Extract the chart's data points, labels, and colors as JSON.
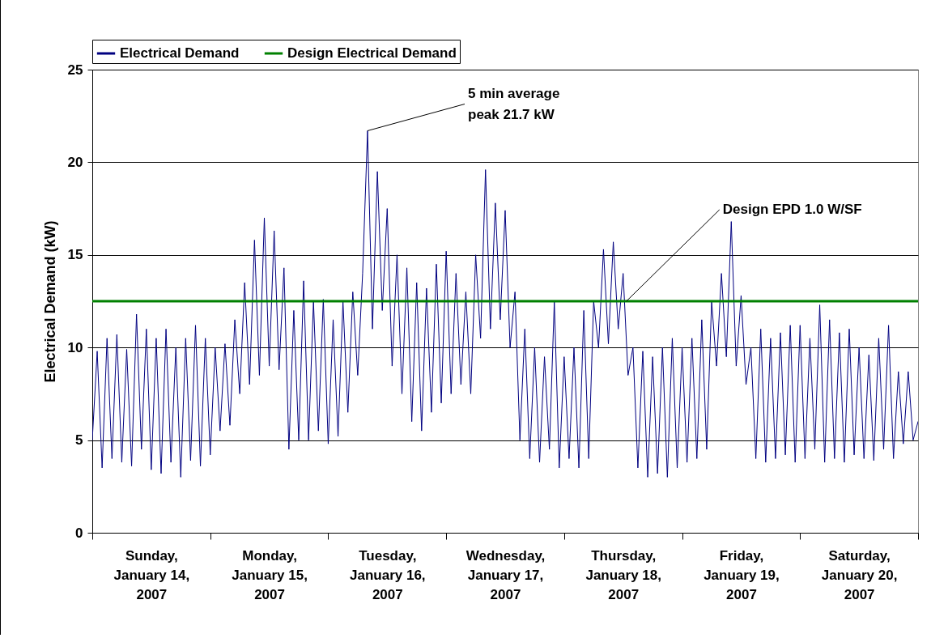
{
  "chart_data": {
    "type": "line",
    "ylabel": "Electrical Demand (kW)",
    "x": [
      "2007-01-14T00:00",
      "2007-01-14T01:00",
      "2007-01-14T02:00",
      "2007-01-14T03:00",
      "2007-01-14T04:00",
      "2007-01-14T05:00",
      "2007-01-14T06:00",
      "2007-01-14T07:00",
      "2007-01-14T08:00",
      "2007-01-14T09:00",
      "2007-01-14T10:00",
      "2007-01-14T11:00",
      "2007-01-14T12:00",
      "2007-01-14T13:00",
      "2007-01-14T14:00",
      "2007-01-14T15:00",
      "2007-01-14T16:00",
      "2007-01-14T17:00",
      "2007-01-14T18:00",
      "2007-01-14T19:00",
      "2007-01-14T20:00",
      "2007-01-14T21:00",
      "2007-01-14T22:00",
      "2007-01-14T23:00",
      "2007-01-15T00:00",
      "2007-01-15T01:00",
      "2007-01-15T02:00",
      "2007-01-15T03:00",
      "2007-01-15T04:00",
      "2007-01-15T05:00",
      "2007-01-15T06:00",
      "2007-01-15T07:00",
      "2007-01-15T08:00",
      "2007-01-15T09:00",
      "2007-01-15T10:00",
      "2007-01-15T11:00",
      "2007-01-15T12:00",
      "2007-01-15T13:00",
      "2007-01-15T14:00",
      "2007-01-15T15:00",
      "2007-01-15T16:00",
      "2007-01-15T17:00",
      "2007-01-15T18:00",
      "2007-01-15T19:00",
      "2007-01-15T20:00",
      "2007-01-15T21:00",
      "2007-01-15T22:00",
      "2007-01-15T23:00",
      "2007-01-16T00:00",
      "2007-01-16T01:00",
      "2007-01-16T02:00",
      "2007-01-16T03:00",
      "2007-01-16T04:00",
      "2007-01-16T05:00",
      "2007-01-16T06:00",
      "2007-01-16T07:00",
      "2007-01-16T08:00",
      "2007-01-16T09:00",
      "2007-01-16T10:00",
      "2007-01-16T11:00",
      "2007-01-16T12:00",
      "2007-01-16T13:00",
      "2007-01-16T14:00",
      "2007-01-16T15:00",
      "2007-01-16T16:00",
      "2007-01-16T17:00",
      "2007-01-16T18:00",
      "2007-01-16T19:00",
      "2007-01-16T20:00",
      "2007-01-16T21:00",
      "2007-01-16T22:00",
      "2007-01-16T23:00",
      "2007-01-17T00:00",
      "2007-01-17T01:00",
      "2007-01-17T02:00",
      "2007-01-17T03:00",
      "2007-01-17T04:00",
      "2007-01-17T05:00",
      "2007-01-17T06:00",
      "2007-01-17T07:00",
      "2007-01-17T08:00",
      "2007-01-17T09:00",
      "2007-01-17T10:00",
      "2007-01-17T11:00",
      "2007-01-17T12:00",
      "2007-01-17T13:00",
      "2007-01-17T14:00",
      "2007-01-17T15:00",
      "2007-01-17T16:00",
      "2007-01-17T17:00",
      "2007-01-17T18:00",
      "2007-01-17T19:00",
      "2007-01-17T20:00",
      "2007-01-17T21:00",
      "2007-01-17T22:00",
      "2007-01-17T23:00",
      "2007-01-18T00:00",
      "2007-01-18T01:00",
      "2007-01-18T02:00",
      "2007-01-18T03:00",
      "2007-01-18T04:00",
      "2007-01-18T05:00",
      "2007-01-18T06:00",
      "2007-01-18T07:00",
      "2007-01-18T08:00",
      "2007-01-18T09:00",
      "2007-01-18T10:00",
      "2007-01-18T11:00",
      "2007-01-18T12:00",
      "2007-01-18T13:00",
      "2007-01-18T14:00",
      "2007-01-18T15:00",
      "2007-01-18T16:00",
      "2007-01-18T17:00",
      "2007-01-18T18:00",
      "2007-01-18T19:00",
      "2007-01-18T20:00",
      "2007-01-18T21:00",
      "2007-01-18T22:00",
      "2007-01-18T23:00",
      "2007-01-19T00:00",
      "2007-01-19T01:00",
      "2007-01-19T02:00",
      "2007-01-19T03:00",
      "2007-01-19T04:00",
      "2007-01-19T05:00",
      "2007-01-19T06:00",
      "2007-01-19T07:00",
      "2007-01-19T08:00",
      "2007-01-19T09:00",
      "2007-01-19T10:00",
      "2007-01-19T11:00",
      "2007-01-19T12:00",
      "2007-01-19T13:00",
      "2007-01-19T14:00",
      "2007-01-19T15:00",
      "2007-01-19T16:00",
      "2007-01-19T17:00",
      "2007-01-19T18:00",
      "2007-01-19T19:00",
      "2007-01-19T20:00",
      "2007-01-19T21:00",
      "2007-01-19T22:00",
      "2007-01-19T23:00",
      "2007-01-20T00:00",
      "2007-01-20T01:00",
      "2007-01-20T02:00",
      "2007-01-20T03:00",
      "2007-01-20T04:00",
      "2007-01-20T05:00",
      "2007-01-20T06:00",
      "2007-01-20T07:00",
      "2007-01-20T08:00",
      "2007-01-20T09:00",
      "2007-01-20T10:00",
      "2007-01-20T11:00",
      "2007-01-20T12:00",
      "2007-01-20T13:00",
      "2007-01-20T14:00",
      "2007-01-20T15:00",
      "2007-01-20T16:00",
      "2007-01-20T17:00",
      "2007-01-20T18:00",
      "2007-01-20T19:00",
      "2007-01-20T20:00",
      "2007-01-20T21:00",
      "2007-01-20T22:00",
      "2007-01-20T23:00",
      "2007-01-21T00:00"
    ],
    "series": [
      {
        "name": "Electrical Demand",
        "color": "#000080",
        "values": [
          5.0,
          9.8,
          3.5,
          10.5,
          4.0,
          10.7,
          3.8,
          9.9,
          3.6,
          11.8,
          4.5,
          11.0,
          3.4,
          10.5,
          3.2,
          11.0,
          3.8,
          10.0,
          3.0,
          10.5,
          3.9,
          11.2,
          3.6,
          10.5,
          4.2,
          10.0,
          5.5,
          10.2,
          5.8,
          11.5,
          7.5,
          13.5,
          8.0,
          15.8,
          8.5,
          17.0,
          9.0,
          16.3,
          8.8,
          14.3,
          4.5,
          12.0,
          5.0,
          13.6,
          5.0,
          12.5,
          5.5,
          12.6,
          4.8,
          11.5,
          5.2,
          12.5,
          6.5,
          13.0,
          8.5,
          14.0,
          21.7,
          11.0,
          19.5,
          12.0,
          17.5,
          9.0,
          15.0,
          7.5,
          14.3,
          6.0,
          13.5,
          5.5,
          13.2,
          6.5,
          14.5,
          7.0,
          15.2,
          7.5,
          14.0,
          8.0,
          13.0,
          7.5,
          15.0,
          10.5,
          19.6,
          11.0,
          17.8,
          11.5,
          17.4,
          10.0,
          13.0,
          5.0,
          11.0,
          4.0,
          10.0,
          3.8,
          9.5,
          4.5,
          12.5,
          3.5,
          9.5,
          4.0,
          10.0,
          3.5,
          12.0,
          4.0,
          12.5,
          10.0,
          15.3,
          10.2,
          15.7,
          11.0,
          14.0,
          8.5,
          10.0,
          3.5,
          9.8,
          3.0,
          9.5,
          3.2,
          10.0,
          3.0,
          10.5,
          3.5,
          10.0,
          3.8,
          10.5,
          4.0,
          11.5,
          4.5,
          12.5,
          9.0,
          14.0,
          9.5,
          16.8,
          9.0,
          12.8,
          8.0,
          10.0,
          4.0,
          11.0,
          3.8,
          10.5,
          4.0,
          10.8,
          4.2,
          11.2,
          3.8,
          11.2,
          4.0,
          10.5,
          4.5,
          12.3,
          3.8,
          11.5,
          4.0,
          10.8,
          3.8,
          11.0,
          4.2,
          10.0,
          4.0,
          9.6,
          3.9,
          10.5,
          4.5,
          11.2,
          4.0,
          8.7,
          4.8,
          8.7,
          5.0,
          6.0
        ]
      },
      {
        "name": "Design Electrical Demand",
        "color": "#008000",
        "x": [
          "2007-01-14T00:00",
          "2007-01-21T00:00"
        ],
        "values": [
          12.5,
          12.5
        ]
      }
    ],
    "xlim": [
      "2007-01-14T00:00",
      "2007-01-21T00:00"
    ],
    "xticks": [
      {
        "value": "2007-01-14T00:00",
        "label": null
      },
      {
        "value": "2007-01-15T00:00",
        "label": null
      },
      {
        "value": "2007-01-16T00:00",
        "label": null
      },
      {
        "value": "2007-01-17T00:00",
        "label": null
      },
      {
        "value": "2007-01-18T00:00",
        "label": null
      },
      {
        "value": "2007-01-19T00:00",
        "label": null
      },
      {
        "value": "2007-01-20T00:00",
        "label": null
      },
      {
        "value": "2007-01-21T00:00",
        "label": null
      },
      {
        "value": "2007-01-14T12:00",
        "label": "Sunday, January 14, 2007"
      },
      {
        "value": "2007-01-15T12:00",
        "label": "Monday, January 15, 2007"
      },
      {
        "value": "2007-01-16T12:00",
        "label": "Tuesday, January 16, 2007"
      },
      {
        "value": "2007-01-17T12:00",
        "label": "Wednesday, January 17, 2007"
      },
      {
        "value": "2007-01-18T12:00",
        "label": "Thursday, January 18, 2007"
      },
      {
        "value": "2007-01-19T12:00",
        "label": "Friday, January 19, 2007"
      },
      {
        "value": "2007-01-20T12:00",
        "label": "Saturday, January 20, 2007"
      }
    ],
    "ylim": [
      0,
      25
    ],
    "yticks": [
      0,
      5,
      10,
      15,
      20,
      25
    ],
    "grid": "y",
    "legend": "top",
    "annotations": [
      {
        "text": "5 min average peak 21.7 kW",
        "x": "2007-01-16T08:00",
        "y": 21.7
      },
      {
        "text": "Design EPD 1.0 W/SF",
        "x": "2007-01-18T12:40",
        "y": 12.5
      }
    ]
  }
}
